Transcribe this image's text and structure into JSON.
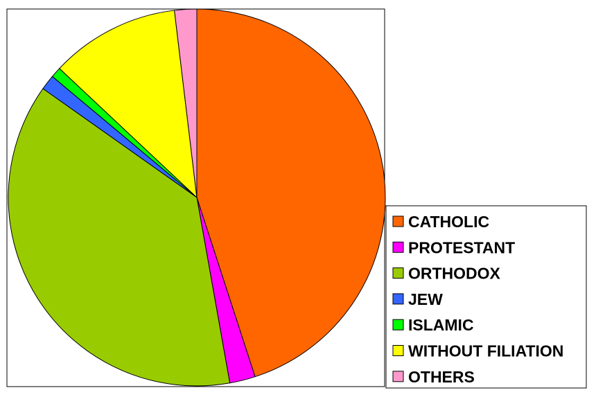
{
  "chart_data": {
    "type": "pie",
    "title": "",
    "start": "top",
    "direction": "clockwise",
    "slices": [
      {
        "label": "CATHOLIC",
        "value": 45.0,
        "color": "#FF6600"
      },
      {
        "label": "PROTESTANT",
        "value": 2.2,
        "color": "#FF00FF"
      },
      {
        "label": "ORTHODOX",
        "value": 37.6,
        "color": "#99CC00"
      },
      {
        "label": "JEW",
        "value": 1.3,
        "color": "#3366FF"
      },
      {
        "label": "ISLAMIC",
        "value": 0.9,
        "color": "#00FF00"
      },
      {
        "label": "WITHOUT FILIATION",
        "value": 11.1,
        "color": "#FFFF00"
      },
      {
        "label": "OTHERS",
        "value": 1.9,
        "color": "#FF99CC"
      }
    ],
    "legend": "bottom-right",
    "grid": false
  }
}
